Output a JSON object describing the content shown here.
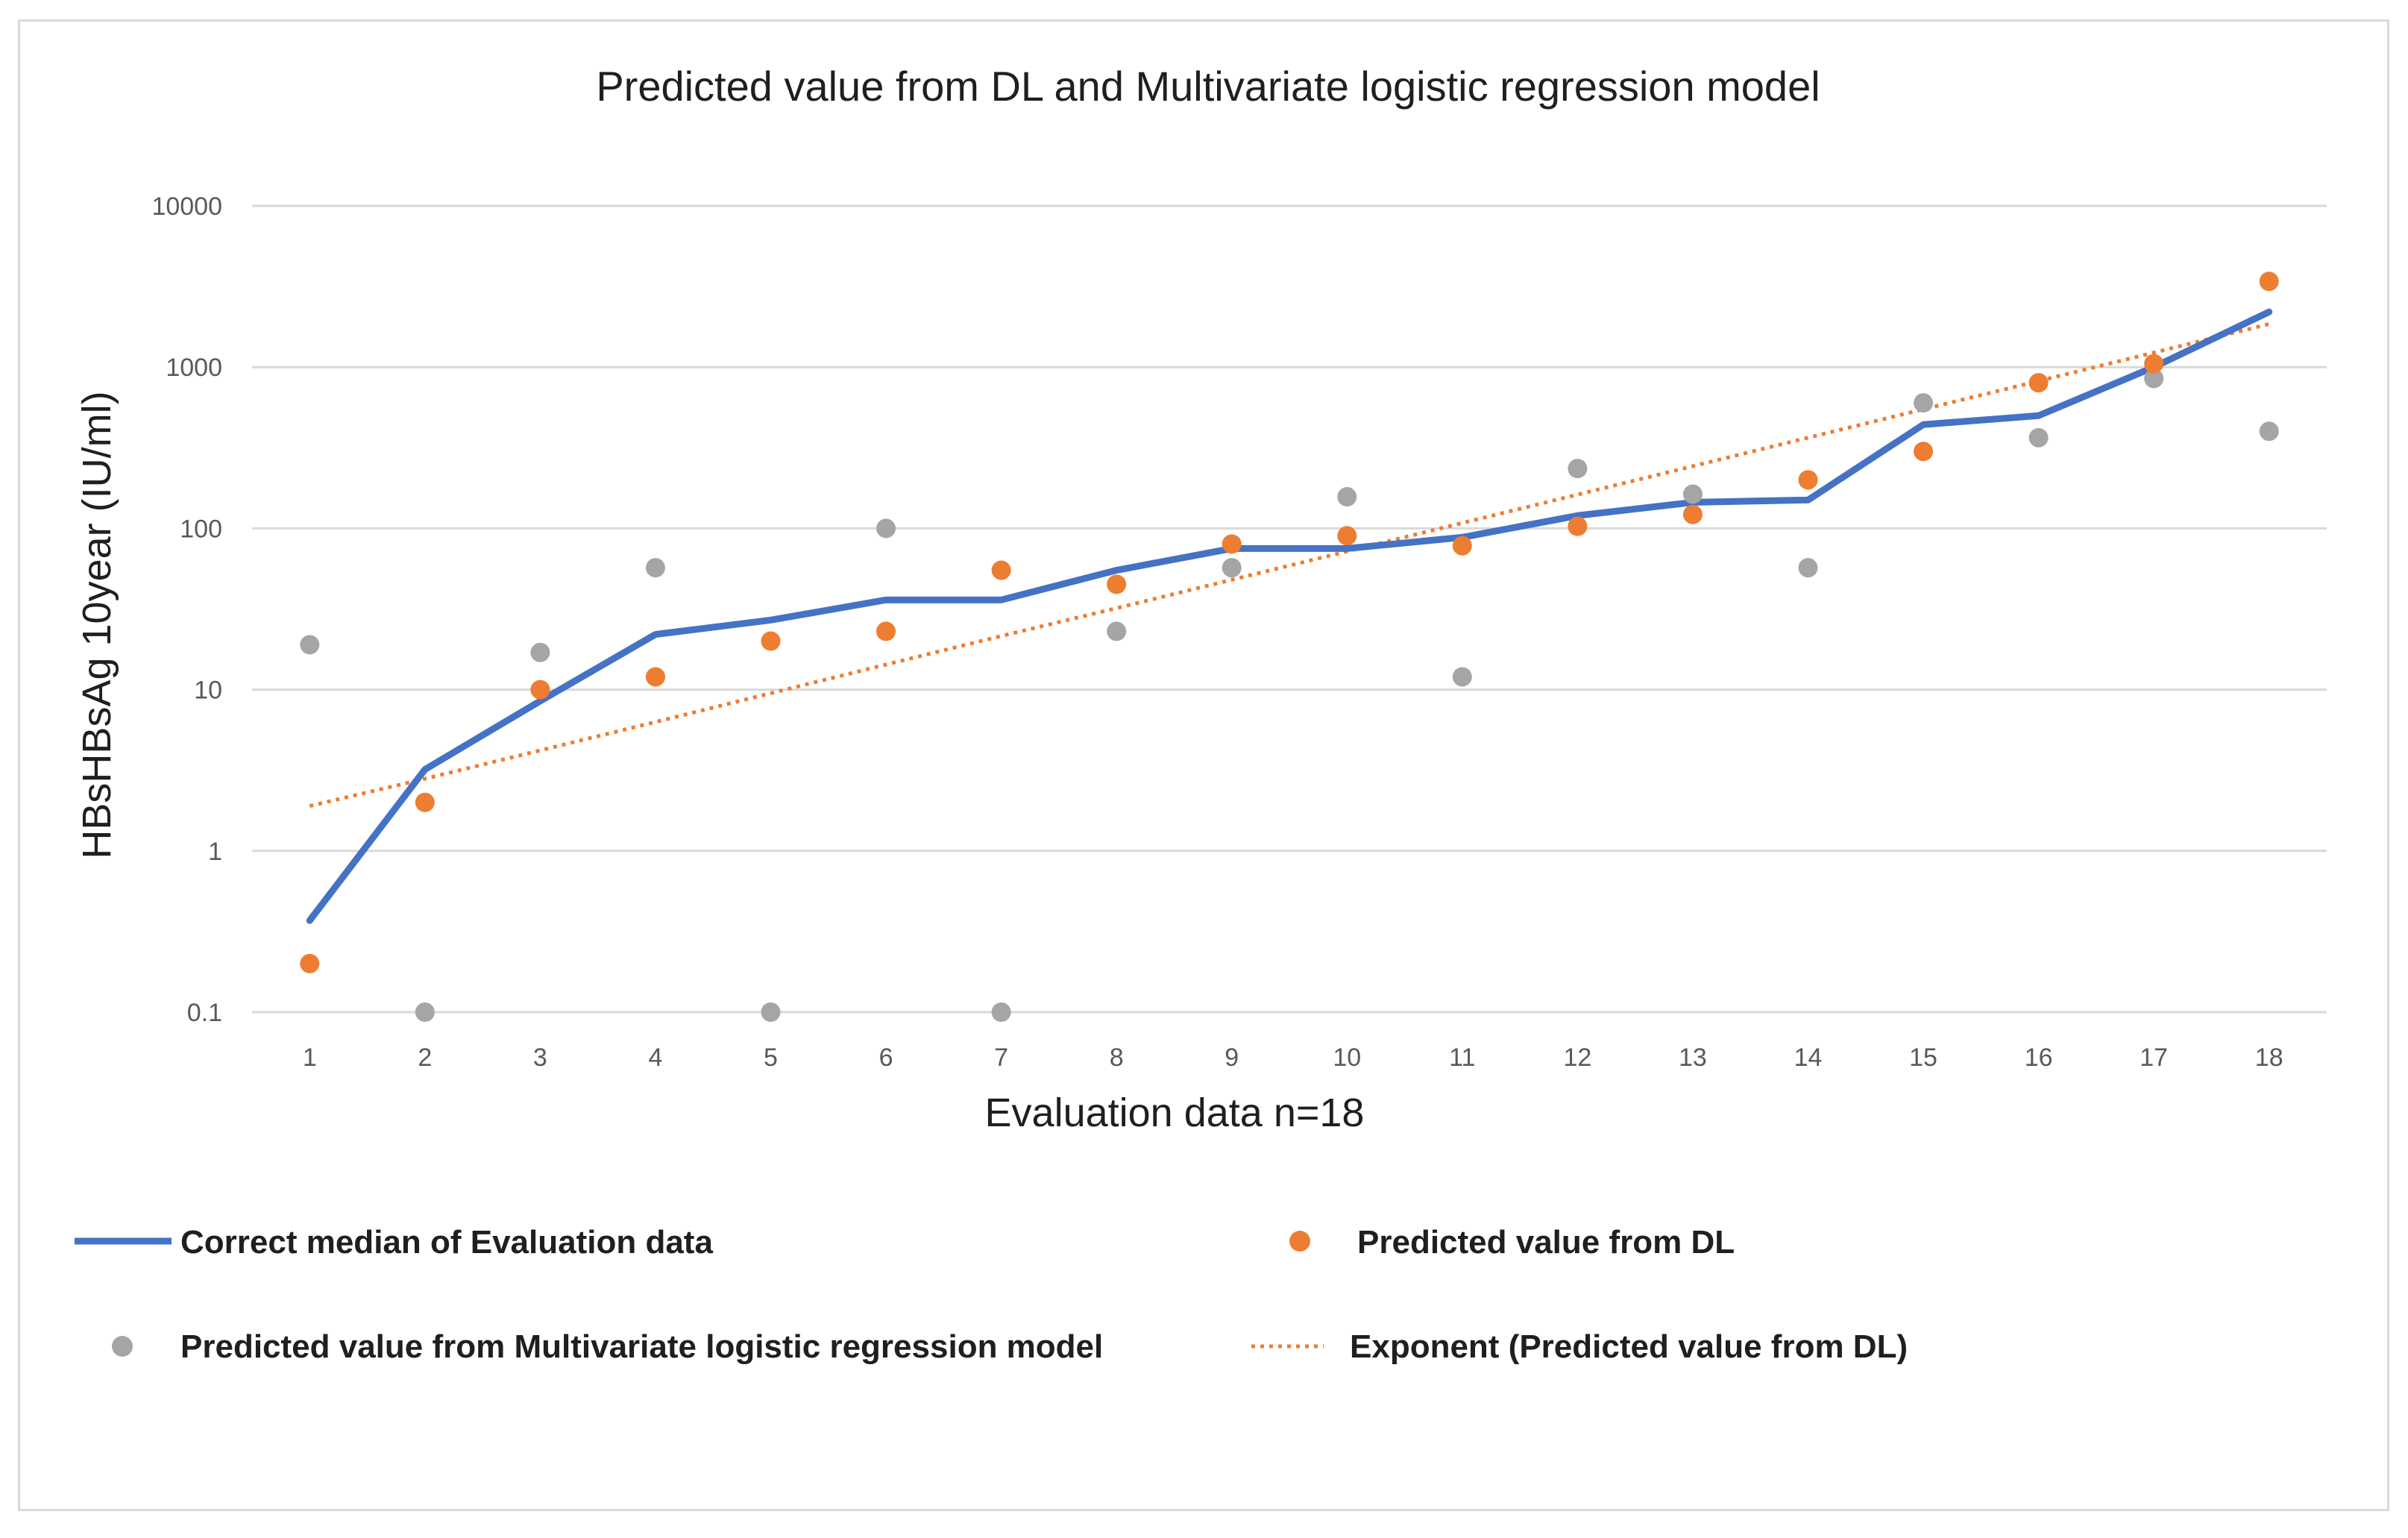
{
  "chart_data": {
    "type": "line",
    "title": "Predicted value from DL and  Multivariate logistic regression model",
    "xlabel": "Evaluation data n=18",
    "ylabel": "HBsHBsAg 10year (IU/ml)",
    "y_scale": "log",
    "ylim": [
      0.1,
      10000
    ],
    "y_ticks": [
      "0.1",
      "1",
      "10",
      "100",
      "1000",
      "10000"
    ],
    "categories": [
      "1",
      "2",
      "3",
      "4",
      "5",
      "6",
      "7",
      "8",
      "9",
      "10",
      "11",
      "12",
      "13",
      "14",
      "15",
      "16",
      "17",
      "18"
    ],
    "grid": true,
    "legend_position": "bottom",
    "series": [
      {
        "name": "Correct median of Evaluation data",
        "style": "line",
        "color": "#4472c4",
        "values": [
          0.37,
          3.2,
          8.5,
          22,
          27,
          36,
          36,
          55,
          75,
          75,
          88,
          120,
          145,
          150,
          440,
          500,
          1000,
          2200
        ]
      },
      {
        "name": "Predicted value from DL",
        "style": "marker",
        "color": "#ed7d31",
        "values": [
          0.2,
          2,
          10,
          12,
          20,
          23,
          55,
          45,
          80,
          90,
          78,
          103,
          122,
          200,
          300,
          800,
          1050,
          3400
        ]
      },
      {
        "name": "Predicted value from Multivariate logistic regression model",
        "style": "marker",
        "color": "#a5a5a5",
        "values": [
          19,
          0.1,
          17,
          57,
          0.1,
          100,
          0.1,
          23,
          57,
          157,
          12,
          235,
          163,
          57,
          600,
          365,
          850,
          400
        ]
      },
      {
        "name": "Exponent (Predicted value from DL)",
        "style": "dotted-trend",
        "color": "#ed7d31",
        "values": [
          1.9,
          2.8,
          4.2,
          6.3,
          9.5,
          14.3,
          21.5,
          32,
          48,
          72,
          108,
          162,
          243,
          365,
          548,
          820,
          1230,
          1850
        ]
      }
    ]
  }
}
